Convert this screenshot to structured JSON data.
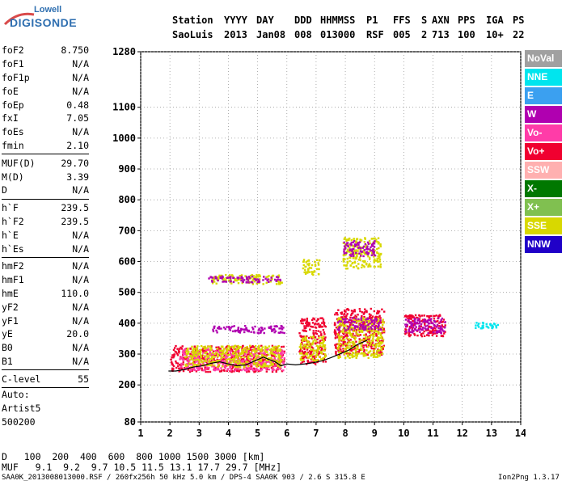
{
  "logo": {
    "top": "Lowell",
    "bottom": "DIGISONDE"
  },
  "header": {
    "row1": [
      "Station",
      "YYYY",
      "DAY",
      "DDD",
      "HHMMSS",
      "P1",
      "FFS",
      "S",
      "AXN",
      "PPS",
      "IGA",
      "PS"
    ],
    "row2": [
      "SaoLuis",
      "2013",
      "Jan08",
      "008",
      "013000",
      "RSF",
      "005",
      "2",
      "713",
      "100",
      "10+",
      "22"
    ]
  },
  "params_groups": [
    [
      {
        "name": "foF2",
        "value": "8.750"
      },
      {
        "name": "foF1",
        "value": "N/A"
      },
      {
        "name": "foF1p",
        "value": "N/A"
      },
      {
        "name": "foE",
        "value": "N/A"
      },
      {
        "name": "foEp",
        "value": "0.48"
      },
      {
        "name": "fxI",
        "value": "7.05"
      },
      {
        "name": "foEs",
        "value": "N/A"
      },
      {
        "name": "fmin",
        "value": "2.10"
      }
    ],
    [
      {
        "name": "MUF(D)",
        "value": "29.70"
      },
      {
        "name": "M(D)",
        "value": "3.39"
      },
      {
        "name": "D",
        "value": "N/A"
      }
    ],
    [
      {
        "name": "h`F",
        "value": "239.5"
      },
      {
        "name": "h`F2",
        "value": "239.5"
      },
      {
        "name": "h`E",
        "value": "N/A"
      },
      {
        "name": "h`Es",
        "value": "N/A"
      }
    ],
    [
      {
        "name": "hmF2",
        "value": "N/A"
      },
      {
        "name": "hmF1",
        "value": "N/A"
      },
      {
        "name": "hmE",
        "value": "110.0"
      },
      {
        "name": "yF2",
        "value": "N/A"
      },
      {
        "name": "yF1",
        "value": "N/A"
      },
      {
        "name": "yE",
        "value": "20.0"
      },
      {
        "name": "B0",
        "value": "N/A"
      },
      {
        "name": "B1",
        "value": "N/A"
      }
    ],
    [
      {
        "name": "C-level",
        "value": "55"
      }
    ]
  ],
  "auto": {
    "line1": "Auto:",
    "line2": "Artist5",
    "line3": "500200"
  },
  "muf_table": {
    "d_label": "D",
    "d_values": "100  200  400  600  800 1000 1500 3000 [km]",
    "muf_label": "MUF",
    "muf_values": "9.1  9.2  9.7 10.5 11.5 13.1 17.7 29.7 [MHz]"
  },
  "footer": {
    "left": "SAA0K_2013008013000.RSF / 260fx256h 50 kHz 5.0 km / DPS-4 SAA0K 903 / 2.6 S 315.8 E",
    "right": "Ion2Png 1.3.17"
  },
  "legend": [
    {
      "label": "NoVal",
      "color": "#a0a0a0"
    },
    {
      "label": "NNE",
      "color": "#00e5ee"
    },
    {
      "label": "E",
      "color": "#3ba0f0"
    },
    {
      "label": "W",
      "color": "#b000b0"
    },
    {
      "label": "Vo-",
      "color": "#ff3ca8"
    },
    {
      "label": "Vo+",
      "color": "#f00030"
    },
    {
      "label": "SSW",
      "color": "#ffb0b0"
    },
    {
      "label": "X-",
      "color": "#007800"
    },
    {
      "label": "X+",
      "color": "#80c050"
    },
    {
      "label": "SSE",
      "color": "#d8d800"
    },
    {
      "label": "NNW",
      "color": "#2000c8"
    }
  ],
  "chart_data": {
    "type": "scatter",
    "title": "",
    "xlabel": "",
    "ylabel": "",
    "xlim": [
      1,
      14
    ],
    "ylim": [
      80,
      1280
    ],
    "x_ticks": [
      1,
      2,
      3,
      4,
      5,
      6,
      7,
      8,
      9,
      10,
      11,
      12,
      13,
      14
    ],
    "y_ticks": [
      80,
      200,
      300,
      400,
      500,
      600,
      700,
      800,
      900,
      1000,
      1100,
      1280
    ],
    "grid": true,
    "trace_line": {
      "name": "",
      "x": [
        1.95,
        2.2,
        2.5,
        2.8,
        3.1,
        3.4,
        3.7,
        4.0,
        4.3,
        4.6,
        4.9,
        5.2,
        5.4,
        5.6,
        5.8,
        6.0,
        6.3,
        6.6,
        6.9,
        7.2,
        7.5,
        7.8,
        8.1,
        8.4,
        8.75
      ],
      "y": [
        245,
        245,
        250,
        258,
        262,
        270,
        275,
        268,
        262,
        265,
        278,
        290,
        282,
        275,
        262,
        268,
        265,
        268,
        272,
        278,
        288,
        300,
        312,
        330,
        345
      ]
    },
    "echo_clusters": [
      {
        "x": [
          2.0,
          5.9
        ],
        "y": [
          245,
          330
        ],
        "color": "#f00030"
      },
      {
        "x": [
          2.3,
          5.9
        ],
        "y": [
          250,
          320
        ],
        "color": "#ff3ca8"
      },
      {
        "x": [
          2.5,
          5.8
        ],
        "y": [
          260,
          330
        ],
        "color": "#d8d800"
      },
      {
        "x": [
          3.4,
          5.9
        ],
        "y": [
          370,
          395
        ],
        "color": "#b000b0"
      },
      {
        "x": [
          3.4,
          5.8
        ],
        "y": [
          530,
          560
        ],
        "color": "#d8d800"
      },
      {
        "x": [
          3.3,
          5.8
        ],
        "y": [
          535,
          555
        ],
        "color": "#b000b0"
      },
      {
        "x": [
          6.4,
          7.3
        ],
        "y": [
          270,
          420
        ],
        "color": "#f00030"
      },
      {
        "x": [
          6.4,
          7.3
        ],
        "y": [
          280,
          360
        ],
        "color": "#d8d800"
      },
      {
        "x": [
          6.5,
          7.1
        ],
        "y": [
          560,
          610
        ],
        "color": "#d8d800"
      },
      {
        "x": [
          7.6,
          9.3
        ],
        "y": [
          300,
          450
        ],
        "color": "#f00030"
      },
      {
        "x": [
          7.7,
          9.3
        ],
        "y": [
          290,
          420
        ],
        "color": "#d8d800"
      },
      {
        "x": [
          7.7,
          9.2
        ],
        "y": [
          380,
          420
        ],
        "color": "#b000b0"
      },
      {
        "x": [
          7.9,
          9.2
        ],
        "y": [
          580,
          680
        ],
        "color": "#d8d800"
      },
      {
        "x": [
          7.9,
          9.0
        ],
        "y": [
          620,
          670
        ],
        "color": "#b000b0"
      },
      {
        "x": [
          10.0,
          11.4
        ],
        "y": [
          360,
          430
        ],
        "color": "#f00030"
      },
      {
        "x": [
          10.0,
          11.4
        ],
        "y": [
          370,
          420
        ],
        "color": "#b000b0"
      },
      {
        "x": [
          12.4,
          13.2
        ],
        "y": [
          385,
          405
        ],
        "color": "#00e5ee"
      }
    ]
  }
}
